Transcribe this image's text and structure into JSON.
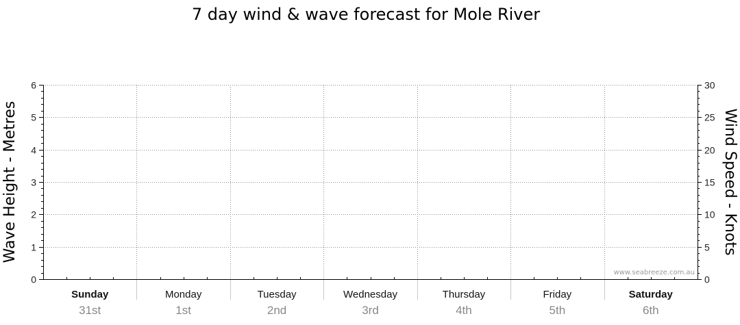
{
  "chart_data": {
    "type": "line",
    "title": "7 day wind & wave forecast for Mole River",
    "y_left": {
      "label": "Wave Height - Metres",
      "range": [
        0,
        6
      ],
      "ticks": [
        0,
        1,
        2,
        3,
        4,
        5,
        6
      ]
    },
    "y_right": {
      "label": "Wind Speed - Knots",
      "range": [
        0,
        30
      ],
      "ticks": [
        0,
        5,
        10,
        15,
        20,
        25,
        30
      ]
    },
    "days": [
      {
        "name": "Sunday",
        "date": "31st",
        "bold": true
      },
      {
        "name": "Monday",
        "date": "1st",
        "bold": false
      },
      {
        "name": "Tuesday",
        "date": "2nd",
        "bold": false
      },
      {
        "name": "Wednesday",
        "date": "3rd",
        "bold": false
      },
      {
        "name": "Thursday",
        "date": "4th",
        "bold": false
      },
      {
        "name": "Friday",
        "date": "5th",
        "bold": false
      },
      {
        "name": "Saturday",
        "date": "6th",
        "bold": true
      }
    ],
    "series": [],
    "grid": true,
    "watermark": "www.seabreeze.com.au"
  }
}
